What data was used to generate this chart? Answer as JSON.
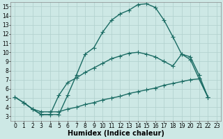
{
  "xlabel": "Humidex (Indice chaleur)",
  "background_color": "#cde8e5",
  "grid_color": "#b0cfcc",
  "line_color": "#1a6b63",
  "xlim": [
    -0.5,
    23.5
  ],
  "ylim": [
    2.5,
    15.5
  ],
  "xticks": [
    0,
    1,
    2,
    3,
    4,
    5,
    6,
    7,
    8,
    9,
    10,
    11,
    12,
    13,
    14,
    15,
    16,
    17,
    18,
    19,
    20,
    21,
    22,
    23
  ],
  "yticks": [
    3,
    4,
    5,
    6,
    7,
    8,
    9,
    10,
    11,
    12,
    13,
    14,
    15
  ],
  "curve1_x": [
    0,
    1,
    2,
    3,
    4,
    5,
    6,
    7,
    8,
    9,
    10,
    11,
    12,
    13,
    14,
    15,
    16,
    17,
    18,
    19,
    20,
    21,
    22
  ],
  "curve1_y": [
    5.1,
    4.5,
    3.8,
    3.2,
    3.2,
    3.2,
    5.3,
    7.5,
    9.8,
    10.5,
    12.2,
    13.5,
    14.2,
    14.6,
    15.2,
    15.3,
    14.9,
    13.5,
    11.7,
    9.8,
    9.2,
    7.1,
    5.1
  ],
  "curve2_x": [
    1,
    2,
    3,
    4,
    5,
    6,
    7,
    8,
    9,
    10,
    11,
    12,
    13,
    14,
    15,
    16,
    17,
    18,
    19,
    20,
    21,
    22
  ],
  "curve2_y": [
    4.5,
    3.8,
    3.2,
    3.2,
    5.3,
    6.7,
    7.2,
    7.8,
    8.3,
    8.8,
    9.3,
    9.6,
    9.9,
    10.0,
    9.8,
    9.5,
    9.0,
    8.5,
    9.8,
    9.5,
    7.5,
    5.1
  ],
  "curve3_x": [
    0,
    1,
    2,
    3,
    4,
    5,
    6,
    7,
    8,
    9,
    10,
    11,
    12,
    13,
    14,
    15,
    16,
    17,
    18,
    19,
    20,
    21,
    22
  ],
  "curve3_y": [
    5.1,
    4.5,
    3.8,
    3.5,
    3.5,
    3.5,
    3.8,
    4.0,
    4.3,
    4.5,
    4.8,
    5.0,
    5.2,
    5.5,
    5.7,
    5.9,
    6.1,
    6.4,
    6.6,
    6.8,
    7.0,
    7.1,
    5.1
  ],
  "markersize": 2.5,
  "linewidth": 1.0,
  "xlabel_fontsize": 7,
  "tick_fontsize": 5.5
}
